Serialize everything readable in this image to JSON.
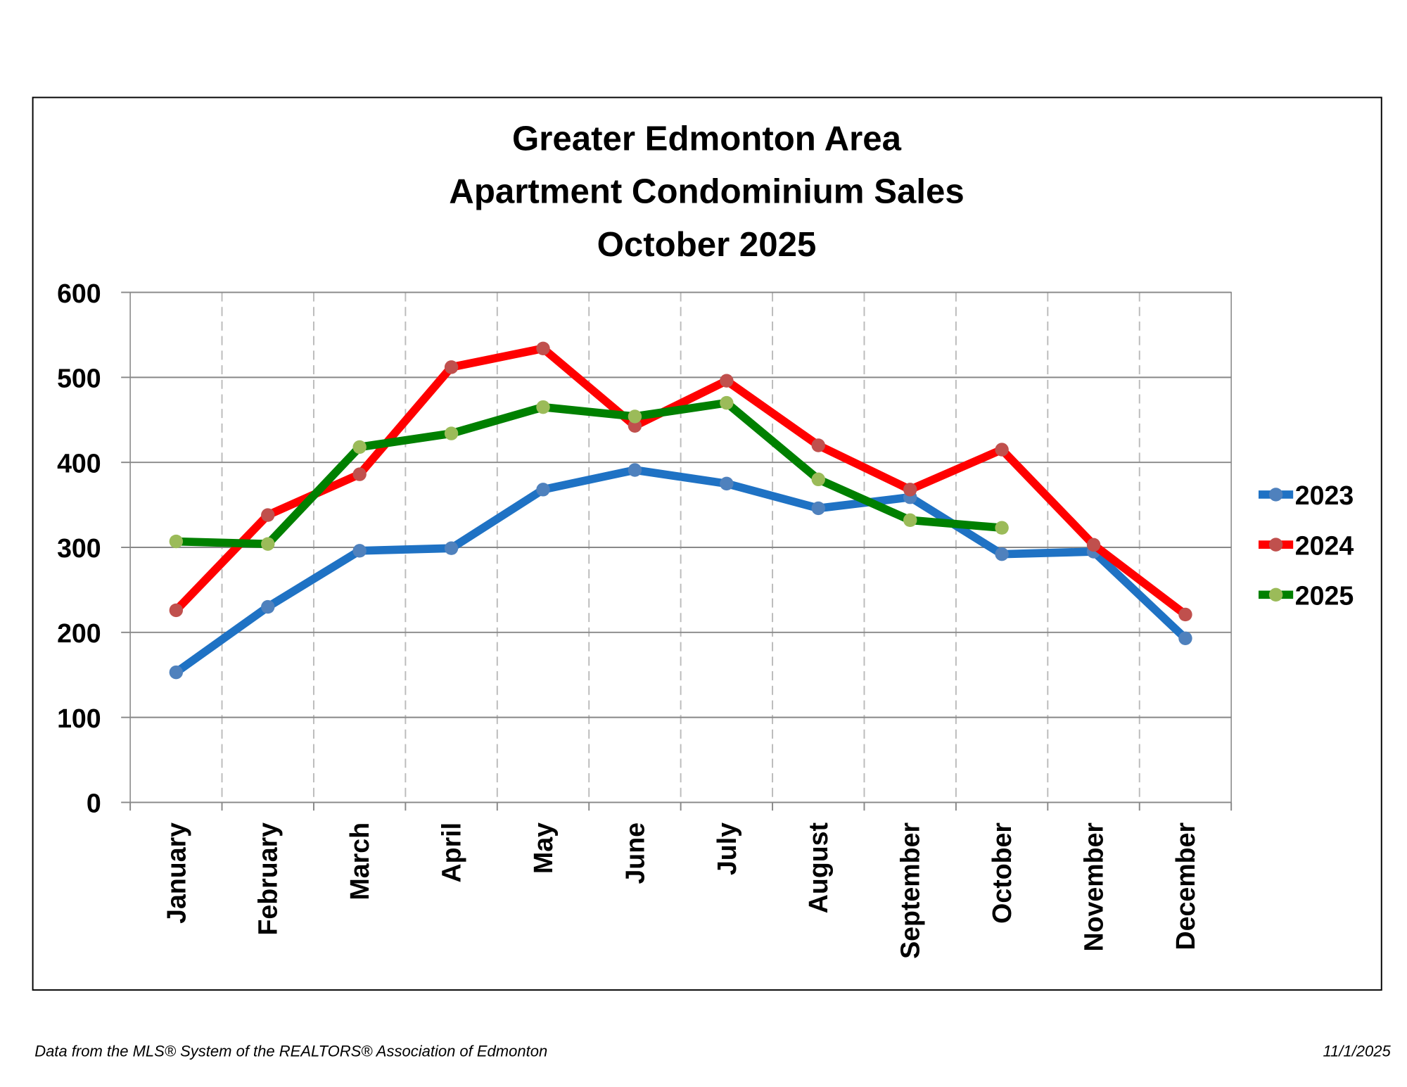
{
  "chart_data": {
    "type": "line",
    "title": [
      "Greater Edmonton Area",
      "Apartment Condominium Sales",
      "October 2025"
    ],
    "categories": [
      "January",
      "February",
      "March",
      "April",
      "May",
      "June",
      "July",
      "August",
      "September",
      "October",
      "November",
      "December"
    ],
    "series": [
      {
        "name": "2023",
        "color": "#1f72c4",
        "marker_color": "#4f81bd",
        "values": [
          153,
          230,
          296,
          299,
          368,
          391,
          375,
          346,
          359,
          292,
          295,
          193
        ]
      },
      {
        "name": "2024",
        "color": "#ff0000",
        "marker_color": "#c0504d",
        "values": [
          226,
          338,
          386,
          512,
          534,
          443,
          496,
          420,
          368,
          415,
          303,
          221
        ]
      },
      {
        "name": "2025",
        "color": "#008000",
        "marker_color": "#9bbb59",
        "values": [
          307,
          304,
          418,
          434,
          465,
          454,
          470,
          380,
          332,
          323,
          null,
          null
        ]
      }
    ],
    "ylim": [
      0,
      600
    ],
    "yticks": [
      0,
      100,
      200,
      300,
      400,
      500,
      600
    ],
    "grid": true,
    "legend": "right",
    "footer_left": "Data from the MLS® System of the REALTORS® Association of Edmonton",
    "footer_right": "11/1/2025"
  }
}
